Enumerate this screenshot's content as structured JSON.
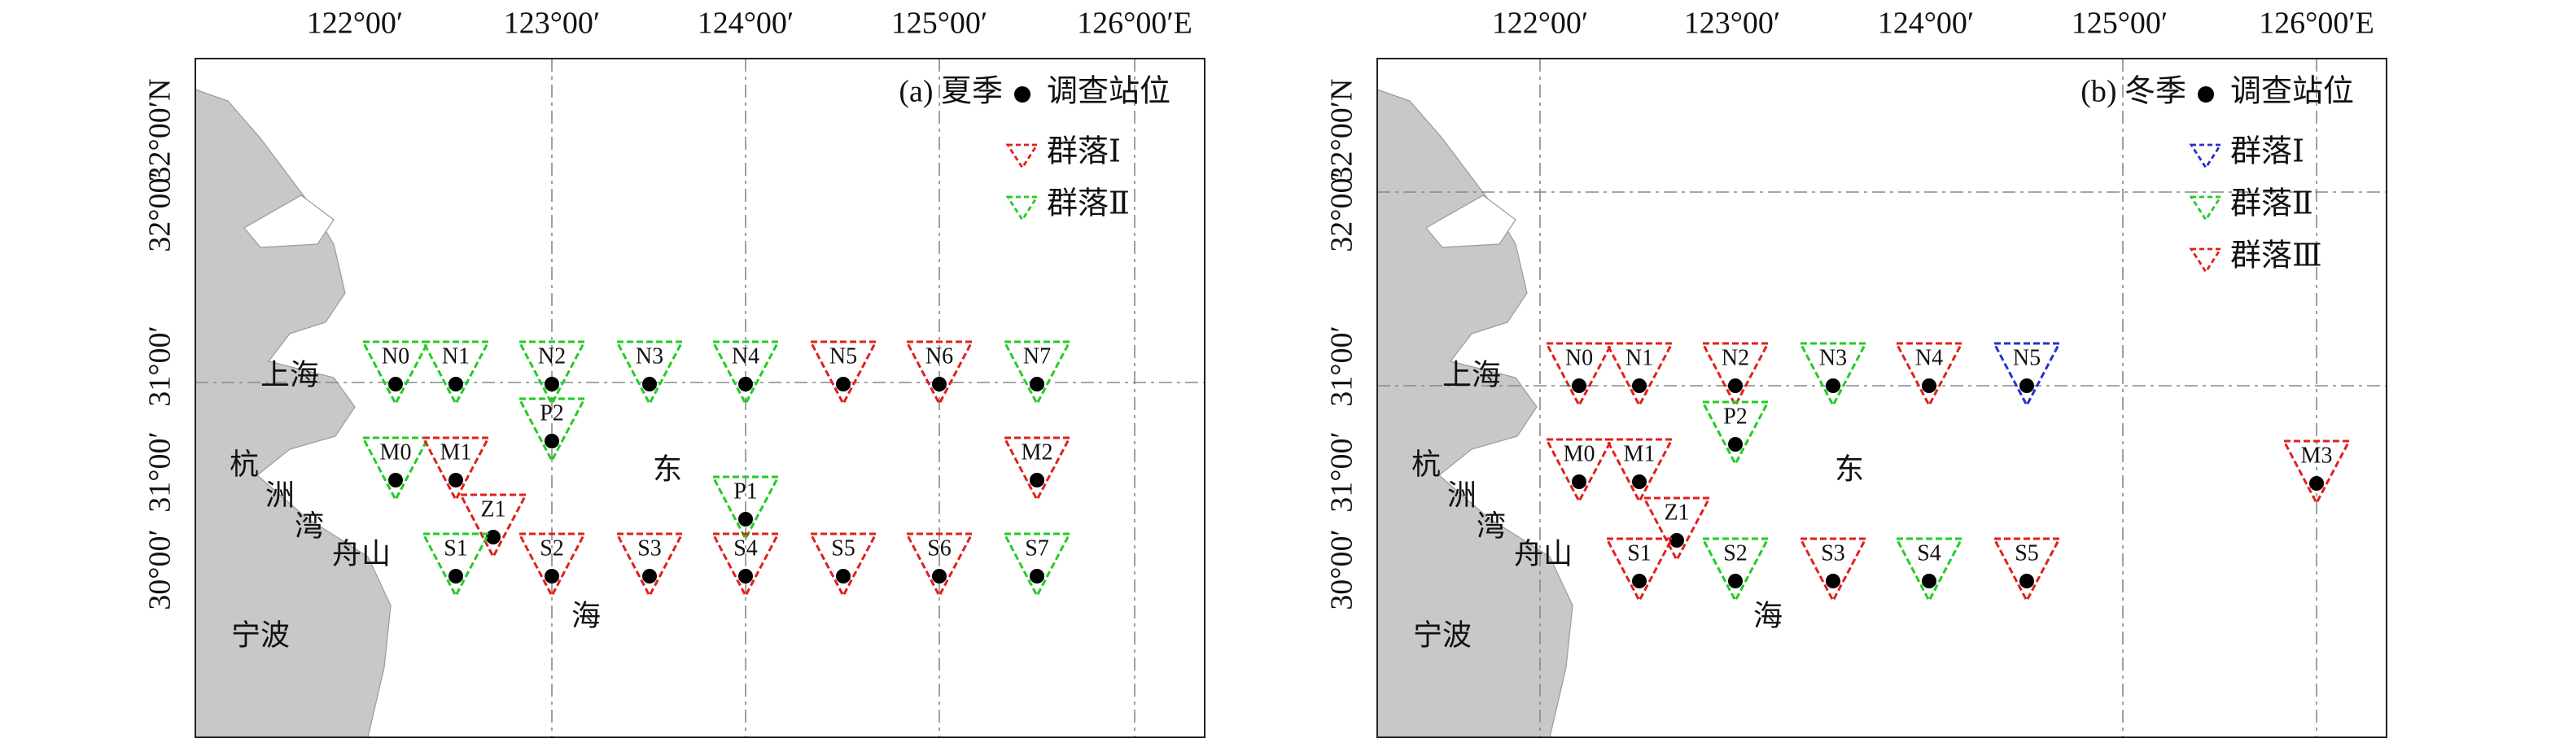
{
  "panels": [
    {
      "label": "(a) 夏季",
      "legend": [
        {
          "text": "调查站位",
          "color": "#000000"
        },
        {
          "text": "群落Ⅰ",
          "color": "#e0201b"
        },
        {
          "text": "群落Ⅱ",
          "color": "#22cc22"
        }
      ],
      "top_ticks": [
        "122°00′",
        "123°00′",
        "124°00′",
        "125°00′",
        "126°00′E"
      ],
      "left_ticks": [
        "32°00′N",
        "32°00′",
        "31°00′",
        "31°00′",
        "30°00′"
      ],
      "places": [
        "上海",
        "杭",
        "洲",
        "湾",
        "舟山",
        "宁波",
        "东",
        "海"
      ],
      "stations": [
        {
          "name": "N0",
          "color": "#22cc22"
        },
        {
          "name": "N1",
          "color": "#22cc22"
        },
        {
          "name": "N2",
          "color": "#22cc22"
        },
        {
          "name": "N3",
          "color": "#22cc22"
        },
        {
          "name": "N4",
          "color": "#22cc22"
        },
        {
          "name": "N5",
          "color": "#e0201b"
        },
        {
          "name": "N6",
          "color": "#e0201b"
        },
        {
          "name": "N7",
          "color": "#22cc22"
        },
        {
          "name": "P2",
          "color": "#22cc22"
        },
        {
          "name": "M0",
          "color": "#22cc22"
        },
        {
          "name": "M1",
          "color": "#e0201b"
        },
        {
          "name": "M2",
          "color": "#e0201b"
        },
        {
          "name": "Z1",
          "color": "#e0201b"
        },
        {
          "name": "P1",
          "color": "#22cc22"
        },
        {
          "name": "S1",
          "color": "#22cc22"
        },
        {
          "name": "S2",
          "color": "#e0201b"
        },
        {
          "name": "S3",
          "color": "#e0201b"
        },
        {
          "name": "S4",
          "color": "#e0201b"
        },
        {
          "name": "S5",
          "color": "#e0201b"
        },
        {
          "name": "S6",
          "color": "#e0201b"
        },
        {
          "name": "S7",
          "color": "#22cc22"
        }
      ]
    },
    {
      "label": "(b) 冬季",
      "legend": [
        {
          "text": "调查站位",
          "color": "#000000"
        },
        {
          "text": "群落Ⅰ",
          "color": "#2233cc"
        },
        {
          "text": "群落Ⅱ",
          "color": "#22cc22"
        },
        {
          "text": "群落Ⅲ",
          "color": "#e0201b"
        }
      ],
      "top_ticks": [
        "122°00′",
        "123°00′",
        "124°00′",
        "125°00′",
        "126°00′E"
      ],
      "left_ticks": [
        "32°00′N",
        "32°00′",
        "31°00′",
        "31°00′",
        "30°00′"
      ],
      "places": [
        "上海",
        "杭",
        "洲",
        "湾",
        "舟山",
        "宁波",
        "东",
        "海"
      ],
      "stations": [
        {
          "name": "N0",
          "color": "#e0201b"
        },
        {
          "name": "N1",
          "color": "#e0201b"
        },
        {
          "name": "N2",
          "color": "#e0201b"
        },
        {
          "name": "N3",
          "color": "#22cc22"
        },
        {
          "name": "N4",
          "color": "#e0201b"
        },
        {
          "name": "N5",
          "color": "#2233cc"
        },
        {
          "name": "P2",
          "color": "#22cc22"
        },
        {
          "name": "M0",
          "color": "#e0201b"
        },
        {
          "name": "M1",
          "color": "#e0201b"
        },
        {
          "name": "M3",
          "color": "#e0201b"
        },
        {
          "name": "Z1",
          "color": "#e0201b"
        },
        {
          "name": "S1",
          "color": "#e0201b"
        },
        {
          "name": "S2",
          "color": "#22cc22"
        },
        {
          "name": "S3",
          "color": "#e0201b"
        },
        {
          "name": "S4",
          "color": "#22cc22"
        },
        {
          "name": "S5",
          "color": "#e0201b"
        }
      ]
    }
  ]
}
